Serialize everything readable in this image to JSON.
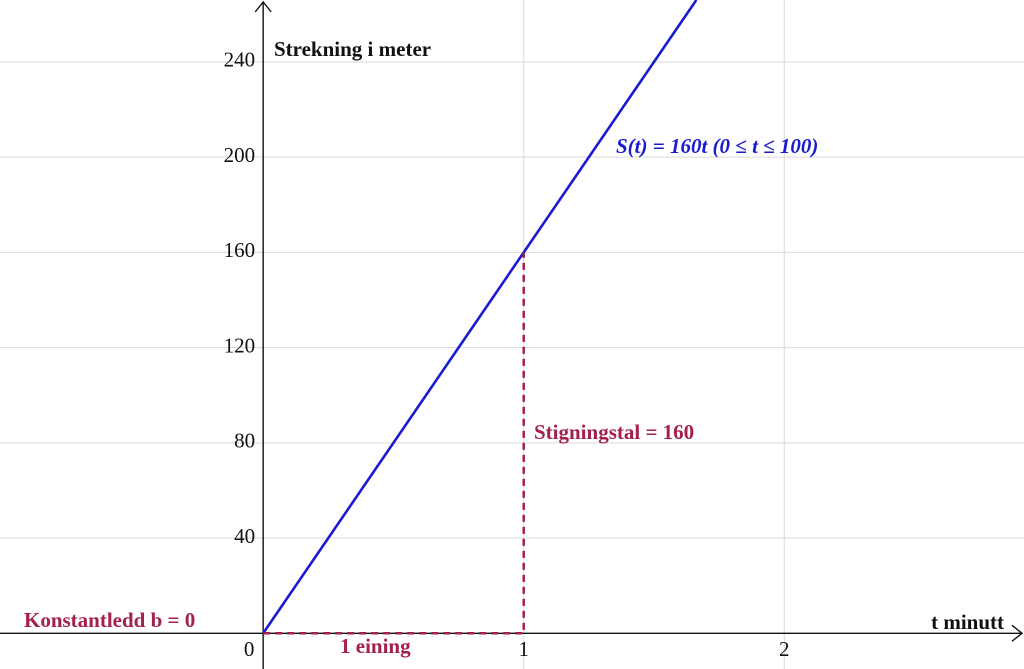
{
  "chart_data": {
    "type": "line",
    "xlabel": "t minutt",
    "ylabel": "Strekning i meter",
    "x": [
      0,
      1.6625
    ],
    "series": [
      {
        "name": "S(t) = 160t (0 ≤ t ≤ 100)",
        "color": "#1a1ad0",
        "values": [
          0,
          266
        ]
      },
      {
        "name": "Stigningstal = 160",
        "color": "#a3204f",
        "x": [
          0,
          1,
          1
        ],
        "values": [
          0,
          0,
          160
        ],
        "dashed": true
      }
    ],
    "annotations": [
      "Konstantledd b = 0",
      "1 eining"
    ],
    "xlim": [
      -1.01,
      2.92
    ],
    "ylim": [
      -15,
      266
    ],
    "xticks": [
      0,
      1,
      2
    ],
    "yticks": [
      40,
      80,
      120,
      160,
      200,
      240
    ],
    "grid": true
  }
}
